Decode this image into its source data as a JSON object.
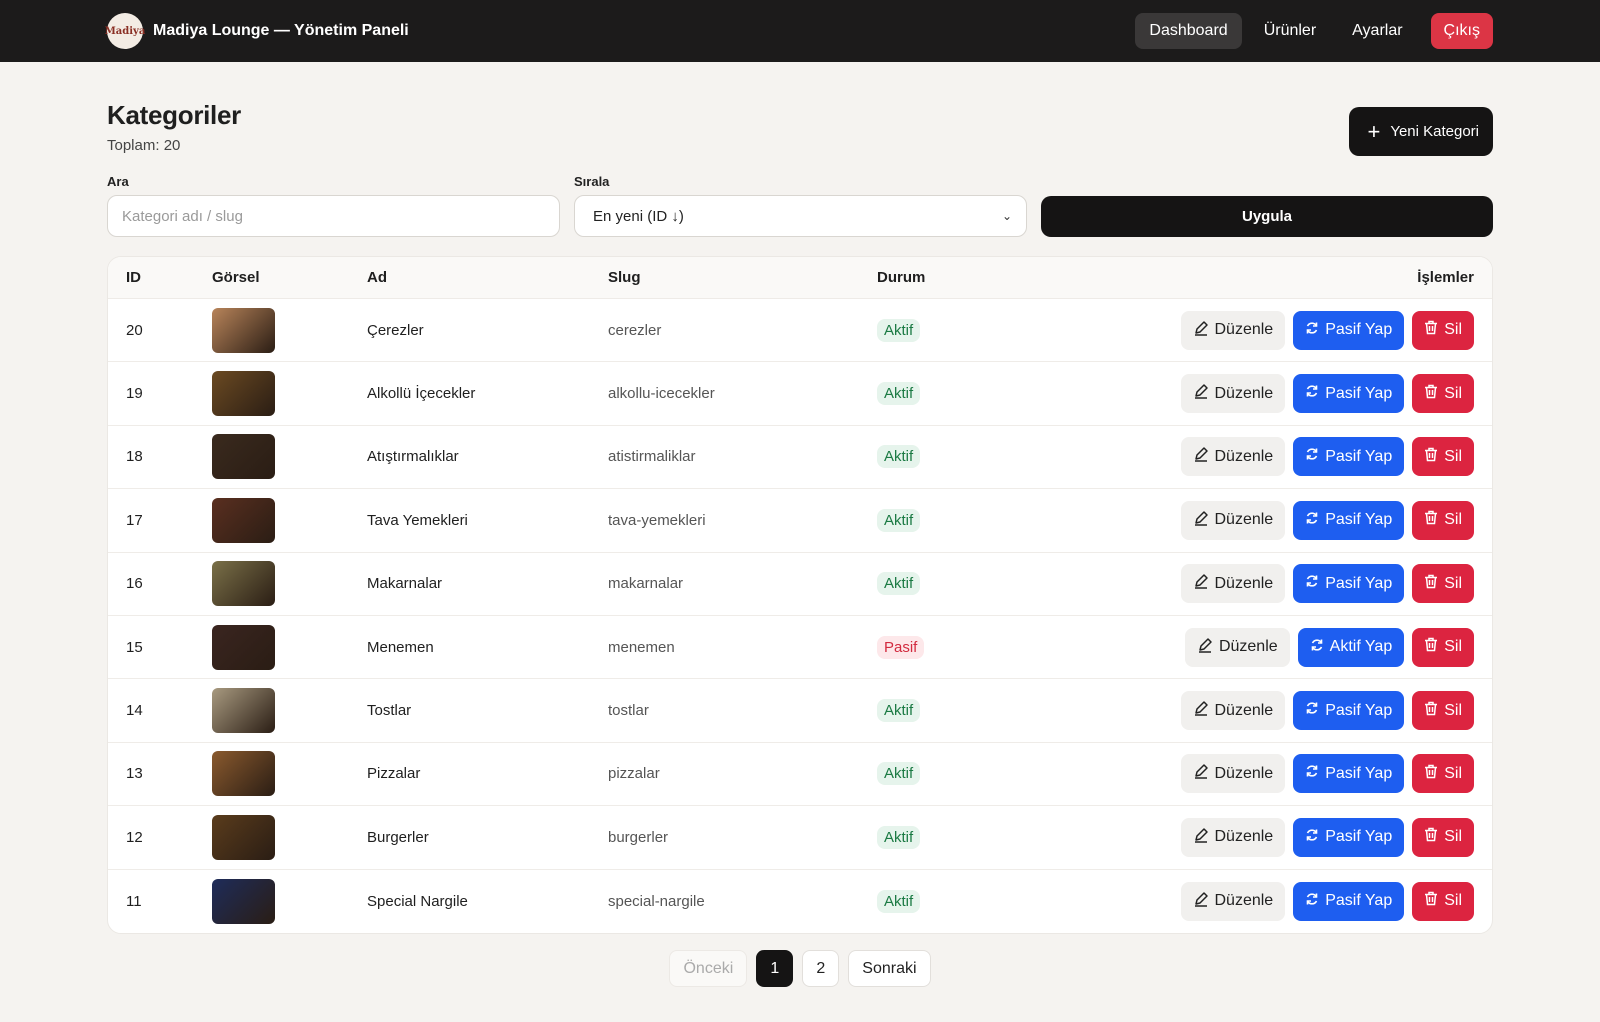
{
  "topbar": {
    "logo_text": "Madiya",
    "title": "Madiya Lounge — Yönetim Paneli",
    "nav": [
      {
        "label": "Dashboard",
        "active": true
      },
      {
        "label": "Ürünler",
        "active": false
      },
      {
        "label": "Ayarlar",
        "active": false
      }
    ],
    "logout_label": "Çıkış"
  },
  "header": {
    "title": "Kategoriler",
    "total": "Toplam: 20",
    "new_button": "Yeni Kategori"
  },
  "filters": {
    "search_label": "Ara",
    "search_placeholder": "Kategori adı / slug",
    "sort_label": "Sırala",
    "sort_value": "En yeni (ID ↓)",
    "apply_label": "Uygula"
  },
  "table": {
    "columns": [
      "ID",
      "Görsel",
      "Ad",
      "Slug",
      "Durum",
      "İşlemler"
    ],
    "edit_label": "Düzenle",
    "delete_label": "Sil",
    "rows": [
      {
        "id": "20",
        "name": "Çerezler",
        "slug": "cerezler",
        "status": "Aktif",
        "toggle": "Pasif Yap",
        "img": "#b8845a"
      },
      {
        "id": "19",
        "name": "Alkollü İçecekler",
        "slug": "alkollu-icecekler",
        "status": "Aktif",
        "toggle": "Pasif Yap",
        "img": "#6b4a22"
      },
      {
        "id": "18",
        "name": "Atıştırmalıklar",
        "slug": "atistirmaliklar",
        "status": "Aktif",
        "toggle": "Pasif Yap",
        "img": "#3a2a1e"
      },
      {
        "id": "17",
        "name": "Tava Yemekleri",
        "slug": "tava-yemekleri",
        "status": "Aktif",
        "toggle": "Pasif Yap",
        "img": "#5a2f20"
      },
      {
        "id": "16",
        "name": "Makarnalar",
        "slug": "makarnalar",
        "status": "Aktif",
        "toggle": "Pasif Yap",
        "img": "#7a7048"
      },
      {
        "id": "15",
        "name": "Menemen",
        "slug": "menemen",
        "status": "Pasif",
        "toggle": "Aktif Yap",
        "img": "#3a2520"
      },
      {
        "id": "14",
        "name": "Tostlar",
        "slug": "tostlar",
        "status": "Aktif",
        "toggle": "Pasif Yap",
        "img": "#a89a80"
      },
      {
        "id": "13",
        "name": "Pizzalar",
        "slug": "pizzalar",
        "status": "Aktif",
        "toggle": "Pasif Yap",
        "img": "#8a5a2e"
      },
      {
        "id": "12",
        "name": "Burgerler",
        "slug": "burgerler",
        "status": "Aktif",
        "toggle": "Pasif Yap",
        "img": "#5a3c1c"
      },
      {
        "id": "11",
        "name": "Special Nargile",
        "slug": "special-nargile",
        "status": "Aktif",
        "toggle": "Pasif Yap",
        "img": "#1e2c5a"
      }
    ]
  },
  "pagination": {
    "prev": "Önceki",
    "pages": [
      "1",
      "2"
    ],
    "current": "1",
    "next": "Sonraki"
  },
  "colors": {
    "topbar": "#1c1b1b",
    "primary_dark": "#151414",
    "toggle_blue": "#1e5ef0",
    "danger_red": "#dc2440",
    "active_green": "#1b7a43"
  }
}
